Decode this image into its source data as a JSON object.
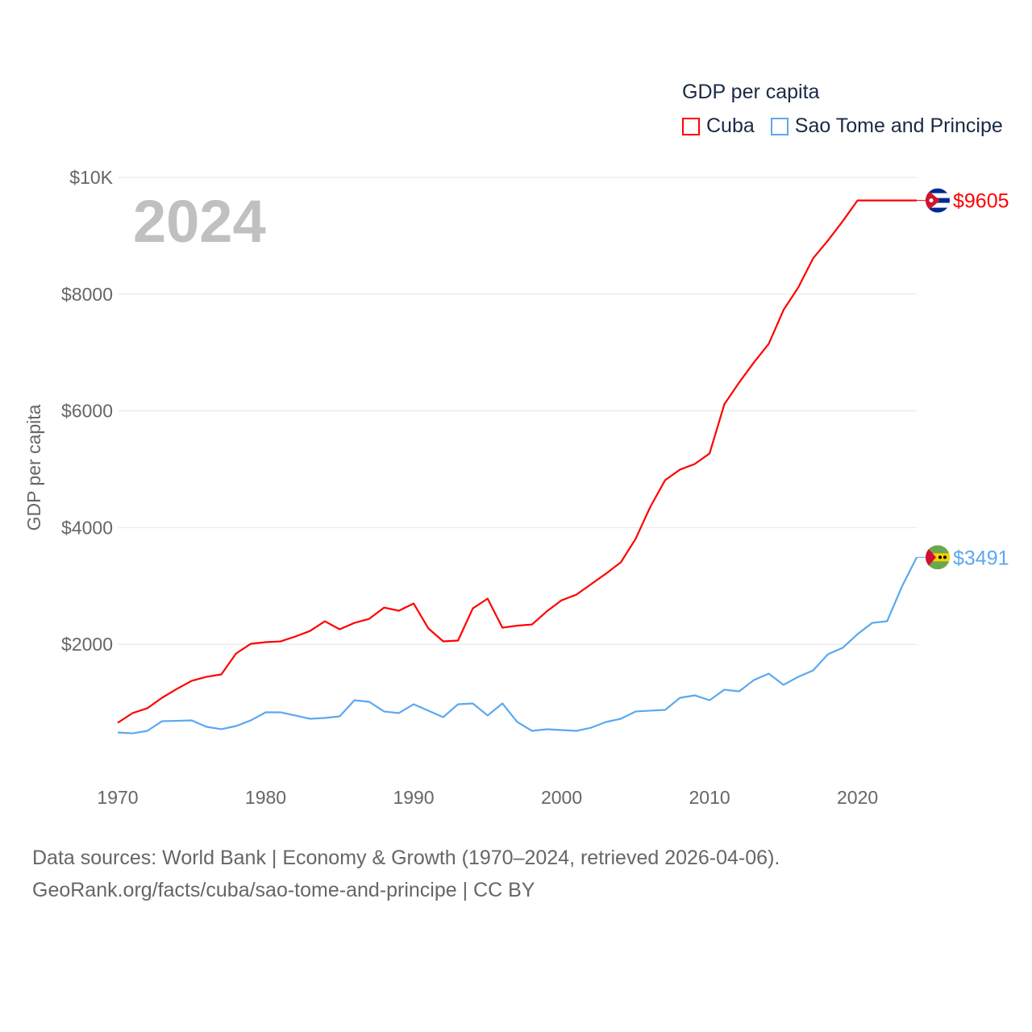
{
  "legend": {
    "title": "GDP per capita"
  },
  "source": {
    "line1": "Data sources: World Bank | Economy & Growth (1970–2024, retrieved 2026-04-06).",
    "line2": "GeoRank.org/facts/cuba/sao-tome-and-principe | CC BY"
  },
  "chart_data": {
    "type": "line",
    "title": "2024",
    "ylabel": "GDP per capita",
    "xlabel": "",
    "xlim": [
      1970,
      2024
    ],
    "ylim": [
      0,
      10000
    ],
    "grid": true,
    "legend_position": "top-right",
    "x_ticks": [
      1970,
      1980,
      1990,
      2000,
      2010,
      2020
    ],
    "x_tick_labels": [
      "1970",
      "1980",
      "1990",
      "2000",
      "2010",
      "2020"
    ],
    "y_ticks": [
      2000,
      4000,
      6000,
      8000,
      10000
    ],
    "y_tick_labels": [
      "$2000",
      "$4000",
      "$6000",
      "$8000",
      "$10K"
    ],
    "x": [
      1970,
      1971,
      1972,
      1973,
      1974,
      1975,
      1976,
      1977,
      1978,
      1979,
      1980,
      1981,
      1982,
      1983,
      1984,
      1985,
      1986,
      1987,
      1988,
      1989,
      1990,
      1991,
      1992,
      1993,
      1994,
      1995,
      1996,
      1997,
      1998,
      1999,
      2000,
      2001,
      2002,
      2003,
      2004,
      2005,
      2006,
      2007,
      2008,
      2009,
      2010,
      2011,
      2012,
      2013,
      2014,
      2015,
      2016,
      2017,
      2018,
      2019,
      2020,
      2021,
      2022,
      2023,
      2024
    ],
    "series": [
      {
        "name": "Cuba",
        "color": "#ff0000",
        "end_label": "$9605",
        "flag": "cuba-flag",
        "values": [
          656,
          822,
          905,
          1086,
          1237,
          1375,
          1444,
          1485,
          1844,
          2010,
          2037,
          2050,
          2134,
          2230,
          2396,
          2258,
          2368,
          2437,
          2630,
          2576,
          2700,
          2272,
          2051,
          2065,
          2617,
          2783,
          2286,
          2320,
          2340,
          2565,
          2755,
          2852,
          3032,
          3212,
          3405,
          3806,
          4358,
          4814,
          4994,
          5090,
          5270,
          6113,
          6486,
          6831,
          7149,
          7729,
          8116,
          8614,
          8918,
          9250,
          9605,
          9605,
          9605,
          9605,
          9605
        ]
      },
      {
        "name": "Sao Tome and Principe",
        "color": "#5ba8f0",
        "end_label": "$3491",
        "flag": "sao-tome-flag",
        "values": [
          490,
          476,
          518,
          684,
          690,
          698,
          587,
          546,
          601,
          698,
          836,
          836,
          781,
          725,
          739,
          767,
          1043,
          1015,
          850,
          822,
          974,
          863,
          753,
          974,
          988,
          781,
          988,
          670,
          518,
          546,
          532,
          518,
          573,
          670,
          725,
          850,
          864,
          877,
          1084,
          1126,
          1043,
          1223,
          1195,
          1389,
          1499,
          1306,
          1444,
          1554,
          1830,
          1941,
          2175,
          2368,
          2396,
          2990,
          3491
        ]
      }
    ]
  }
}
